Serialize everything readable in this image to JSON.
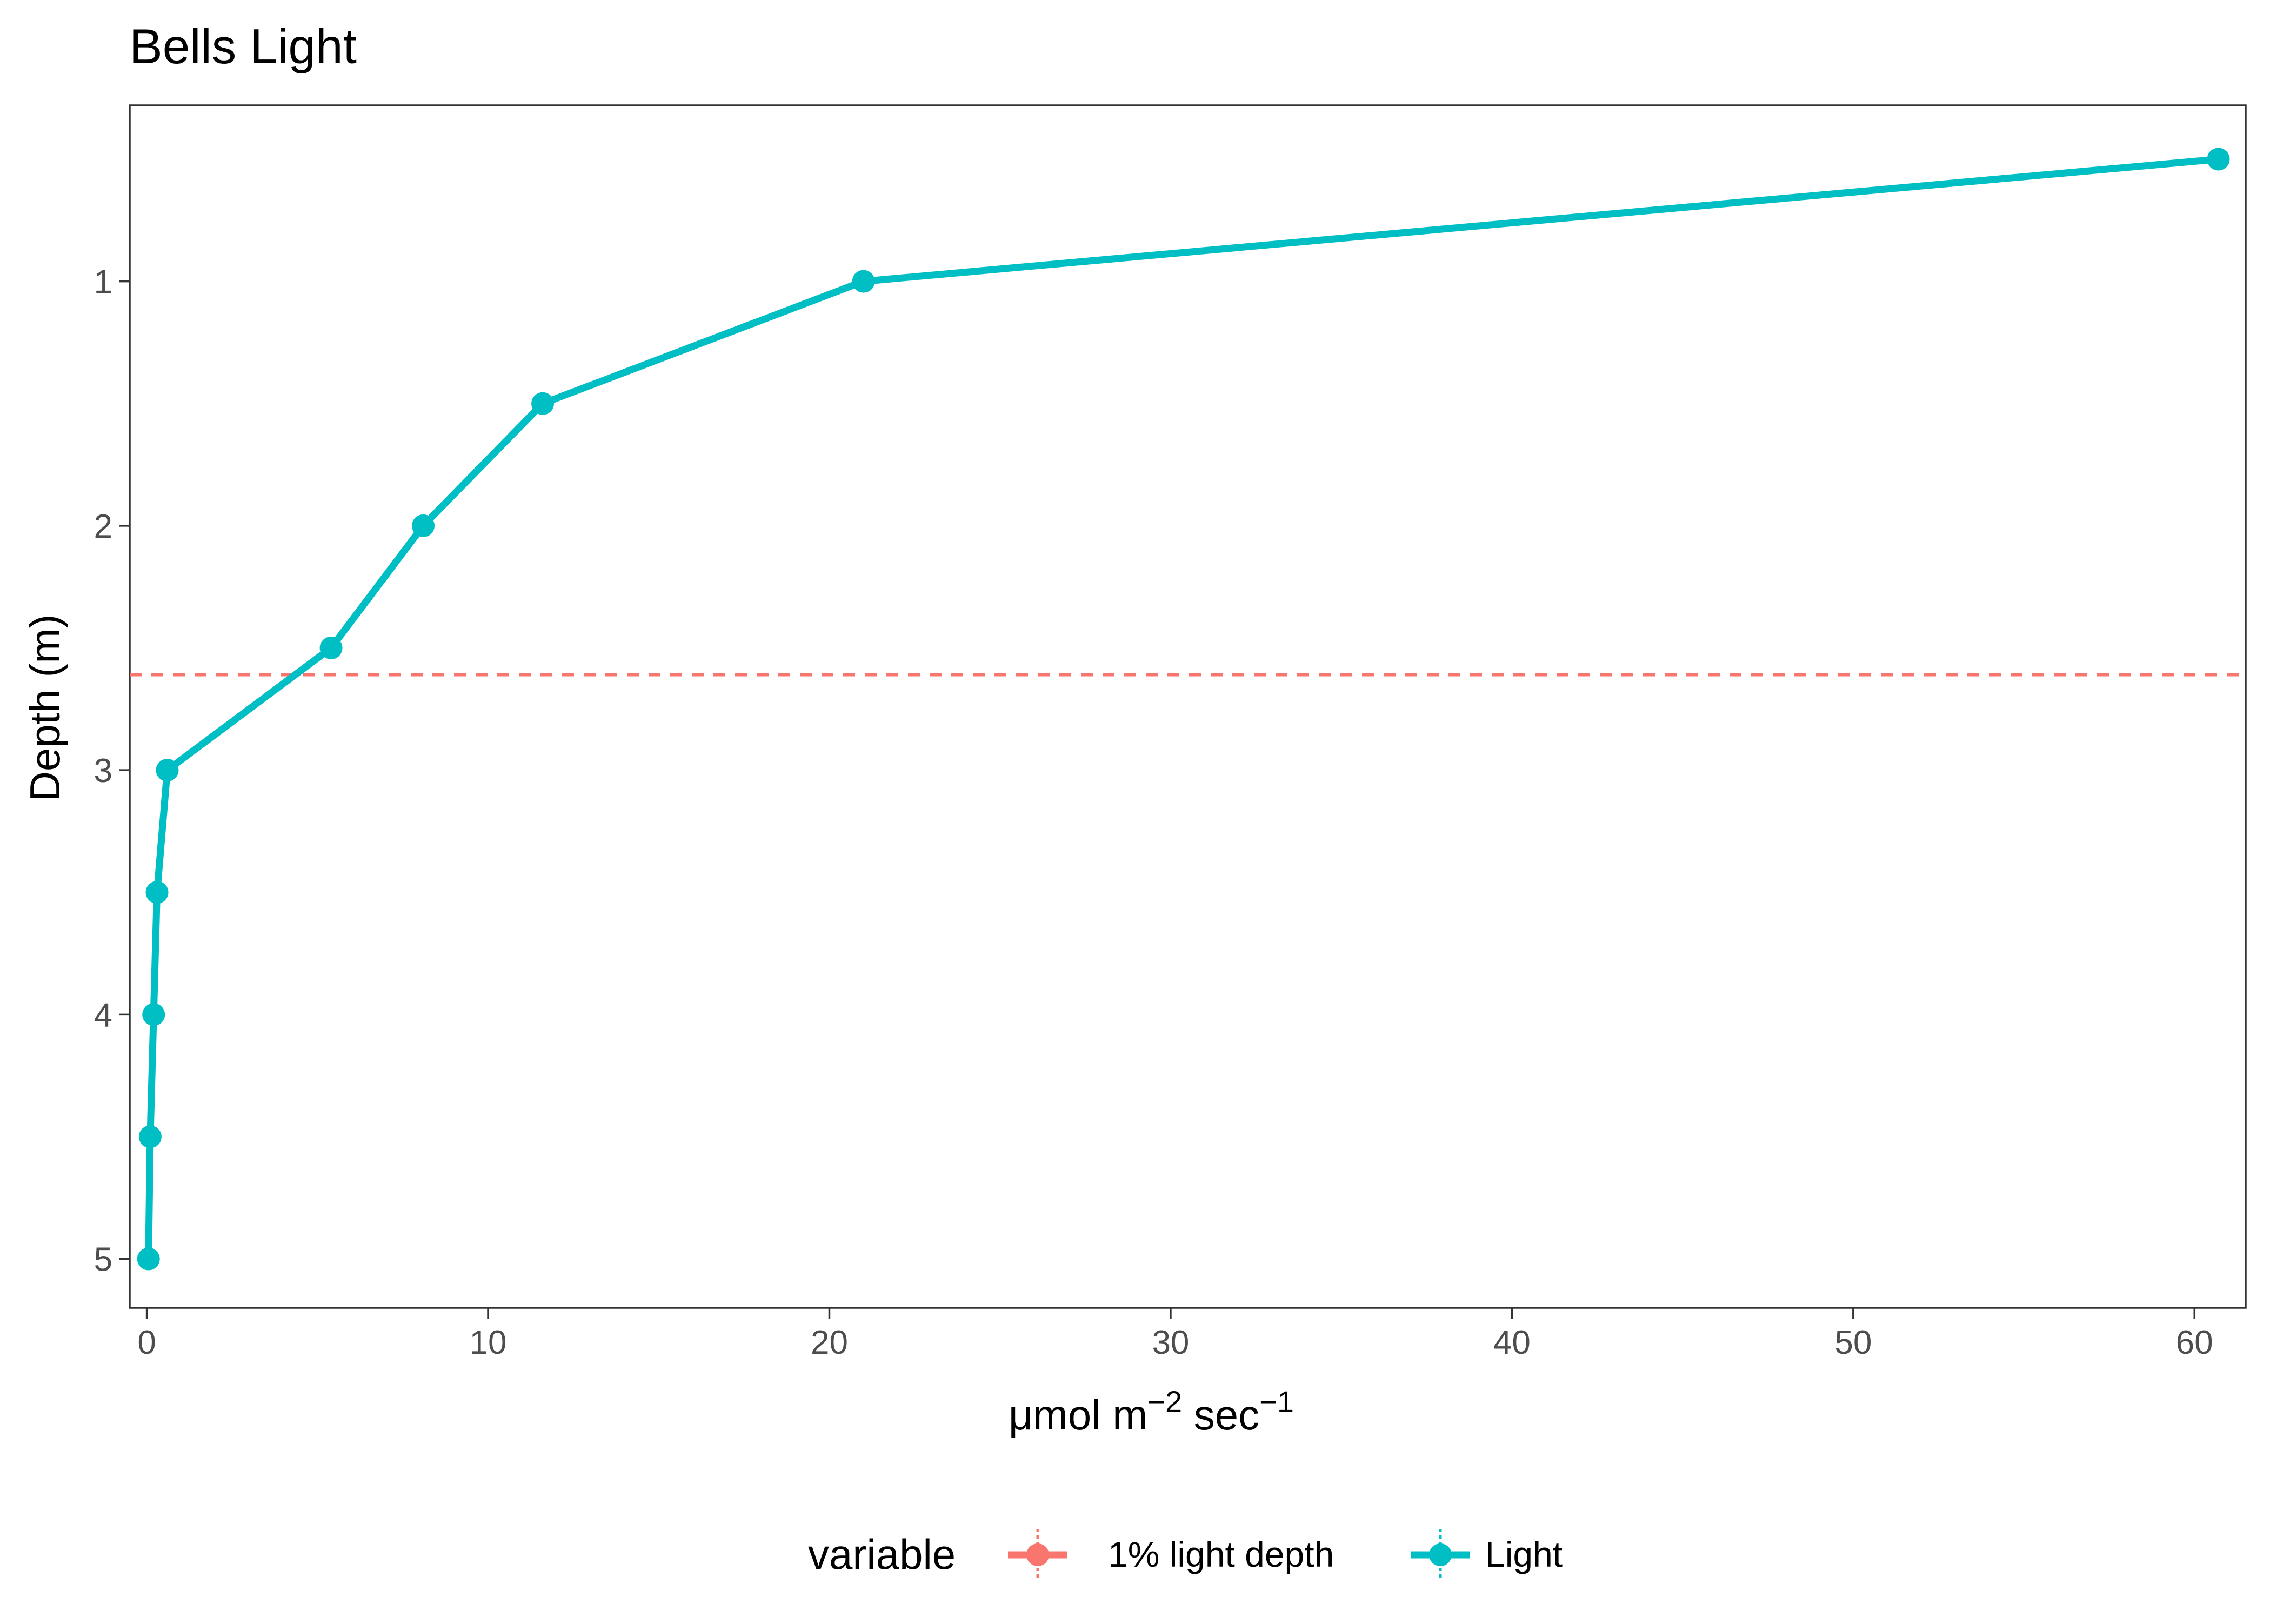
{
  "chart_data": {
    "type": "line",
    "title": "Bells Light",
    "xlabel": "μmol m",
    "xlabel_sup1": "−2",
    "xlabel_mid": " sec",
    "xlabel_sup2": "−1",
    "ylabel": "Depth (m)",
    "y_reversed": true,
    "xlim": [
      -0.5,
      61.5
    ],
    "ylim": [
      0.28,
      5.2
    ],
    "x_ticks": [
      0,
      10,
      20,
      30,
      40,
      50,
      60
    ],
    "y_ticks": [
      1,
      2,
      3,
      4,
      5
    ],
    "grid": false,
    "legend_placement": "bottom",
    "legend_title": "variable",
    "series": [
      {
        "name": "Light",
        "color": "#00BFC4",
        "points": [
          {
            "x": 60.7,
            "y": 0.5
          },
          {
            "x": 21.0,
            "y": 1.0
          },
          {
            "x": 11.6,
            "y": 1.5
          },
          {
            "x": 8.1,
            "y": 2.0
          },
          {
            "x": 5.4,
            "y": 2.5
          },
          {
            "x": 0.6,
            "y": 3.0
          },
          {
            "x": 0.3,
            "y": 3.5
          },
          {
            "x": 0.2,
            "y": 4.0
          },
          {
            "x": 0.1,
            "y": 4.5
          },
          {
            "x": 0.05,
            "y": 5.0
          }
        ]
      }
    ],
    "reference_lines": [
      {
        "name": "1% light depth",
        "color": "#F8766D",
        "style": "dashed",
        "y": 2.61
      }
    ]
  }
}
